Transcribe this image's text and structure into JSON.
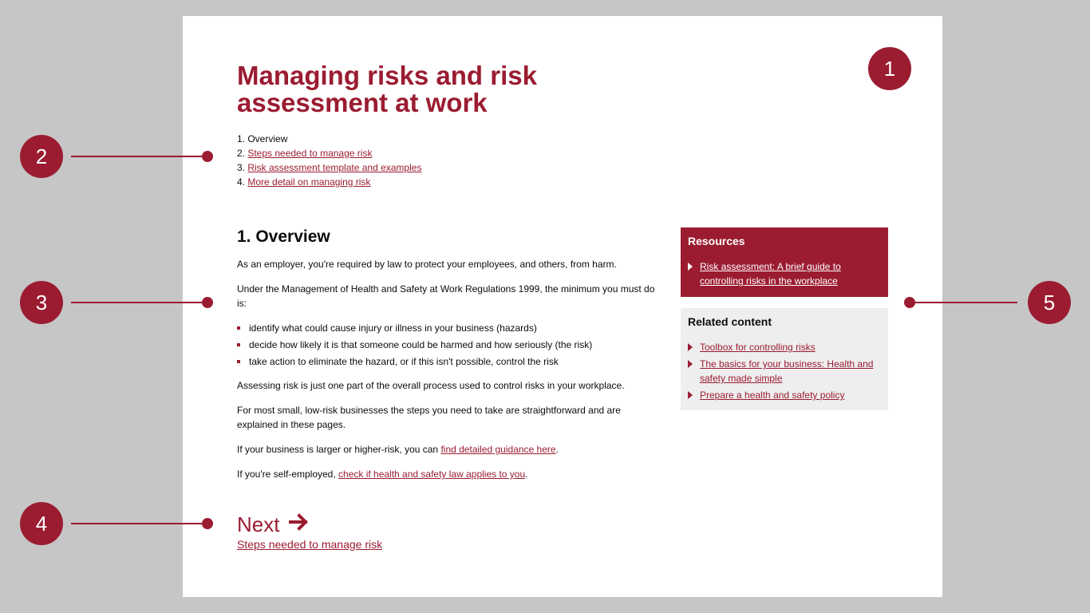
{
  "page": {
    "title": "Managing risks and risk assessment at work"
  },
  "toc": [
    {
      "prefix": "1. ",
      "label": "Overview"
    },
    {
      "prefix": "2. ",
      "label": "Steps needed to manage risk"
    },
    {
      "prefix": "3. ",
      "label": "Risk assessment template and examples"
    },
    {
      "prefix": "4. ",
      "label": "More detail on managing risk"
    }
  ],
  "overview": {
    "heading": "1. Overview",
    "p1": "As an employer, you're required by law to protect your employees, and others, from harm.",
    "p2": "Under the Management of Health and Safety at Work Regulations 1999, the minimum you must do is:",
    "bullets": [
      "identify what could cause injury or illness in your business (hazards)",
      "decide how likely it is that someone could be harmed and how seriously (the risk)",
      "take action to eliminate the hazard, or if this isn't possible, control the risk"
    ],
    "p3": "Assessing risk is just one part of the overall process used to control risks in your workplace.",
    "p4": "For most small, low-risk businesses the steps you need to take are straightforward and are explained in these pages.",
    "p5_pre": "If your business is larger or higher-risk, you can ",
    "p5_link": "find detailed guidance here",
    "p5_post": ".",
    "p6_pre": "If you're self-employed, ",
    "p6_link": "check if health and safety law applies to you",
    "p6_post": "."
  },
  "next": {
    "label": "Next",
    "arrow": "arrow-right-icon",
    "link": "Steps needed to manage risk"
  },
  "resources": {
    "heading": "Resources",
    "items": [
      "Risk assessment: A brief guide to controlling risks in the workplace"
    ]
  },
  "related": {
    "heading": "Related content",
    "items": [
      "Toolbox for controlling risks",
      "The basics for your business: Health and safety made simple",
      "Prepare a health and safety policy"
    ]
  },
  "callouts": [
    "1",
    "2",
    "3",
    "4",
    "5"
  ],
  "colors": {
    "accent": "#9b1c31",
    "background": "#c6c6c6",
    "panel": "#eeeeee"
  }
}
